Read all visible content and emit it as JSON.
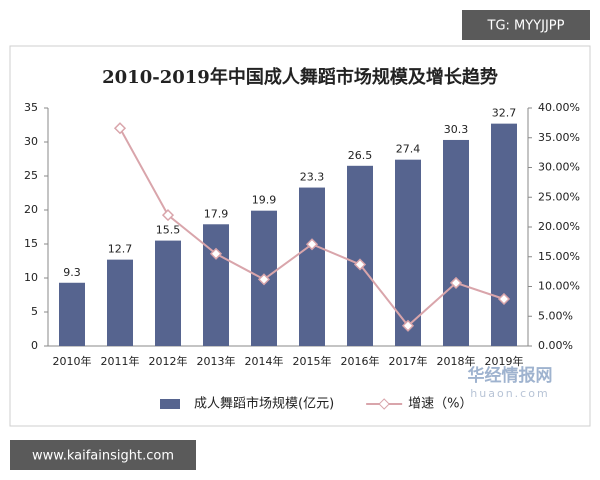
{
  "chart_data": {
    "type": "bar-line",
    "title": "2010-2019年中国成人舞蹈市场规模及增长趋势",
    "categories": [
      "2010年",
      "2011年",
      "2012年",
      "2013年",
      "2014年",
      "2015年",
      "2016年",
      "2017年",
      "2018年",
      "2019年"
    ],
    "series": [
      {
        "name": "成人舞蹈市场规模(亿元)",
        "type": "bar",
        "color": "#56648f",
        "values": [
          9.3,
          12.7,
          15.5,
          17.9,
          19.9,
          23.3,
          26.5,
          27.4,
          30.3,
          32.7
        ]
      },
      {
        "name": "增速（%）",
        "type": "line",
        "axis": "y2",
        "color": "#d9a5ab",
        "values": [
          null,
          36.6,
          22.0,
          15.5,
          11.2,
          17.1,
          13.7,
          3.4,
          10.6,
          7.9
        ]
      }
    ],
    "ylim": [
      0,
      35
    ],
    "yticks": [
      0,
      5,
      10,
      15,
      20,
      25,
      30,
      35
    ],
    "y2lim": [
      0,
      40
    ],
    "y2ticks": [
      {
        "value": 0,
        "label": "0.00%"
      },
      {
        "value": 5,
        "label": "5.00%"
      },
      {
        "value": 10,
        "label": "10.00%"
      },
      {
        "value": 15,
        "label": "15.00%"
      },
      {
        "value": 20,
        "label": "20.00%"
      },
      {
        "value": 25,
        "label": "25.00%"
      },
      {
        "value": 30,
        "label": "30.00%"
      },
      {
        "value": 35,
        "label": "35.00%"
      },
      {
        "value": 40,
        "label": "40.00%"
      }
    ],
    "grid": false,
    "legend": "bottom"
  },
  "watermarks": {
    "top": "TG: MYYJJPP",
    "bottom": "www.kaifainsight.com",
    "logo_cn": "华经情报网",
    "logo_en": "huaon.com"
  }
}
